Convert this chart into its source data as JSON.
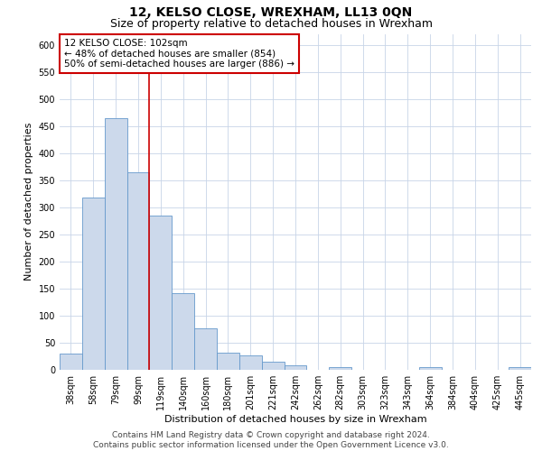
{
  "title": "12, KELSO CLOSE, WREXHAM, LL13 0QN",
  "subtitle": "Size of property relative to detached houses in Wrexham",
  "xlabel": "Distribution of detached houses by size in Wrexham",
  "ylabel": "Number of detached properties",
  "categories": [
    "38sqm",
    "58sqm",
    "79sqm",
    "99sqm",
    "119sqm",
    "140sqm",
    "160sqm",
    "180sqm",
    "201sqm",
    "221sqm",
    "242sqm",
    "262sqm",
    "282sqm",
    "303sqm",
    "323sqm",
    "343sqm",
    "364sqm",
    "384sqm",
    "404sqm",
    "425sqm",
    "445sqm"
  ],
  "values": [
    30,
    318,
    465,
    365,
    285,
    142,
    76,
    31,
    27,
    15,
    8,
    0,
    5,
    0,
    0,
    0,
    5,
    0,
    0,
    0,
    5
  ],
  "bar_color": "#ccd9eb",
  "bar_edge_color": "#6699cc",
  "vline_index": 3,
  "annotation_title": "12 KELSO CLOSE: 102sqm",
  "annotation_line1": "← 48% of detached houses are smaller (854)",
  "annotation_line2": "50% of semi-detached houses are larger (886) →",
  "annotation_box_color": "#ffffff",
  "annotation_box_edge_color": "#cc0000",
  "vline_color": "#cc0000",
  "ylim": [
    0,
    620
  ],
  "yticks": [
    0,
    50,
    100,
    150,
    200,
    250,
    300,
    350,
    400,
    450,
    500,
    550,
    600
  ],
  "footer_line1": "Contains HM Land Registry data © Crown copyright and database right 2024.",
  "footer_line2": "Contains public sector information licensed under the Open Government Licence v3.0.",
  "bg_color": "#ffffff",
  "grid_color": "#c8d4e8",
  "title_fontsize": 10,
  "subtitle_fontsize": 9,
  "axis_label_fontsize": 8,
  "tick_fontsize": 7,
  "footer_fontsize": 6.5,
  "annotation_fontsize": 7.5
}
